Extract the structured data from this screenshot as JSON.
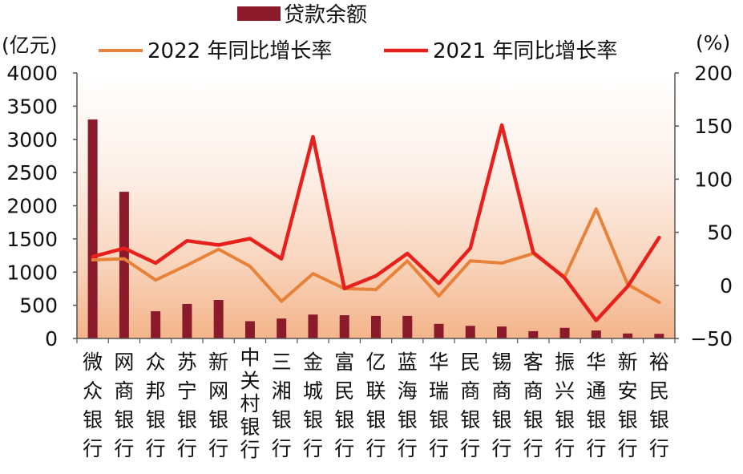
{
  "chart_data": {
    "type": "bar+line",
    "categories": [
      "微众银行",
      "网商银行",
      "众邦银行",
      "苏宁银行",
      "新网银行",
      "中关村银行",
      "三湘银行",
      "金城银行",
      "富民银行",
      "亿联银行",
      "蓝海银行",
      "华瑞银行",
      "民商银行",
      "锡商银行",
      "客商银行",
      "振兴银行",
      "华通银行",
      "新安银行",
      "裕民银行"
    ],
    "left_axis": {
      "unit": "(亿元)",
      "ylim": [
        0,
        4000
      ],
      "ticks": [
        0,
        500,
        1000,
        1500,
        2000,
        2500,
        3000,
        3500,
        4000
      ]
    },
    "right_axis": {
      "unit": "(%)",
      "ylim": [
        -50,
        200
      ],
      "ticks": [
        "−50",
        "0",
        "50",
        "100",
        "150",
        "200"
      ]
    },
    "series": [
      {
        "name": "贷款余额",
        "kind": "bar",
        "axis": "left",
        "color": "#8b1a2b",
        "values": [
          3300,
          2210,
          410,
          520,
          580,
          260,
          300,
          360,
          350,
          340,
          340,
          220,
          190,
          180,
          110,
          160,
          120,
          75,
          70
        ]
      },
      {
        "name": "2022 年同比增长率",
        "kind": "line",
        "axis": "right",
        "color": "#e8823a",
        "values": [
          24,
          25,
          5,
          19,
          34,
          18,
          -15,
          11,
          -3,
          -4,
          23,
          -10,
          23,
          21,
          30,
          8,
          72,
          1,
          -16
        ]
      },
      {
        "name": "2021 年同比增长率",
        "kind": "line",
        "axis": "right",
        "color": "#e8201c",
        "values": [
          27,
          35,
          21,
          42,
          38,
          44,
          25,
          140,
          -3,
          9,
          30,
          2,
          35,
          151,
          31,
          7,
          -33,
          -1,
          45
        ]
      }
    ],
    "legend_position": "top",
    "grid": false
  }
}
